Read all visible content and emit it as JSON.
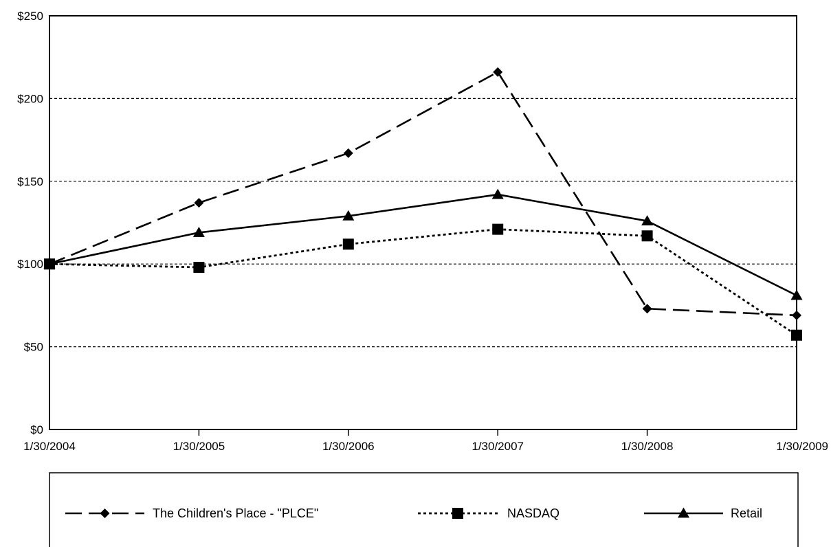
{
  "chart_data": {
    "type": "line",
    "title": "",
    "xlabel": "",
    "ylabel": "",
    "categories": [
      "1/30/2004",
      "1/30/2005",
      "1/30/2006",
      "1/30/2007",
      "1/30/2008",
      "1/30/2009"
    ],
    "ylim": [
      0,
      250
    ],
    "yticks": [
      0,
      50,
      100,
      150,
      200,
      250
    ],
    "ytick_labels": [
      "$0",
      "$50",
      "$100",
      "$150",
      "$200",
      "$250"
    ],
    "grid": "horizontal dotted lines at $50, $100, $150, $200",
    "legend_position": "bottom",
    "series": [
      {
        "name": "The Children's Place - \"PLCE\"",
        "values": [
          100,
          137,
          167,
          216,
          73,
          69
        ],
        "line_style": "dashed",
        "marker": "diamond"
      },
      {
        "name": "NASDAQ",
        "values": [
          100,
          98,
          112,
          121,
          117,
          57
        ],
        "line_style": "dotted",
        "marker": "square"
      },
      {
        "name": "Retail",
        "values": [
          100,
          119,
          129,
          142,
          126,
          81
        ],
        "line_style": "solid",
        "marker": "triangle"
      }
    ]
  }
}
